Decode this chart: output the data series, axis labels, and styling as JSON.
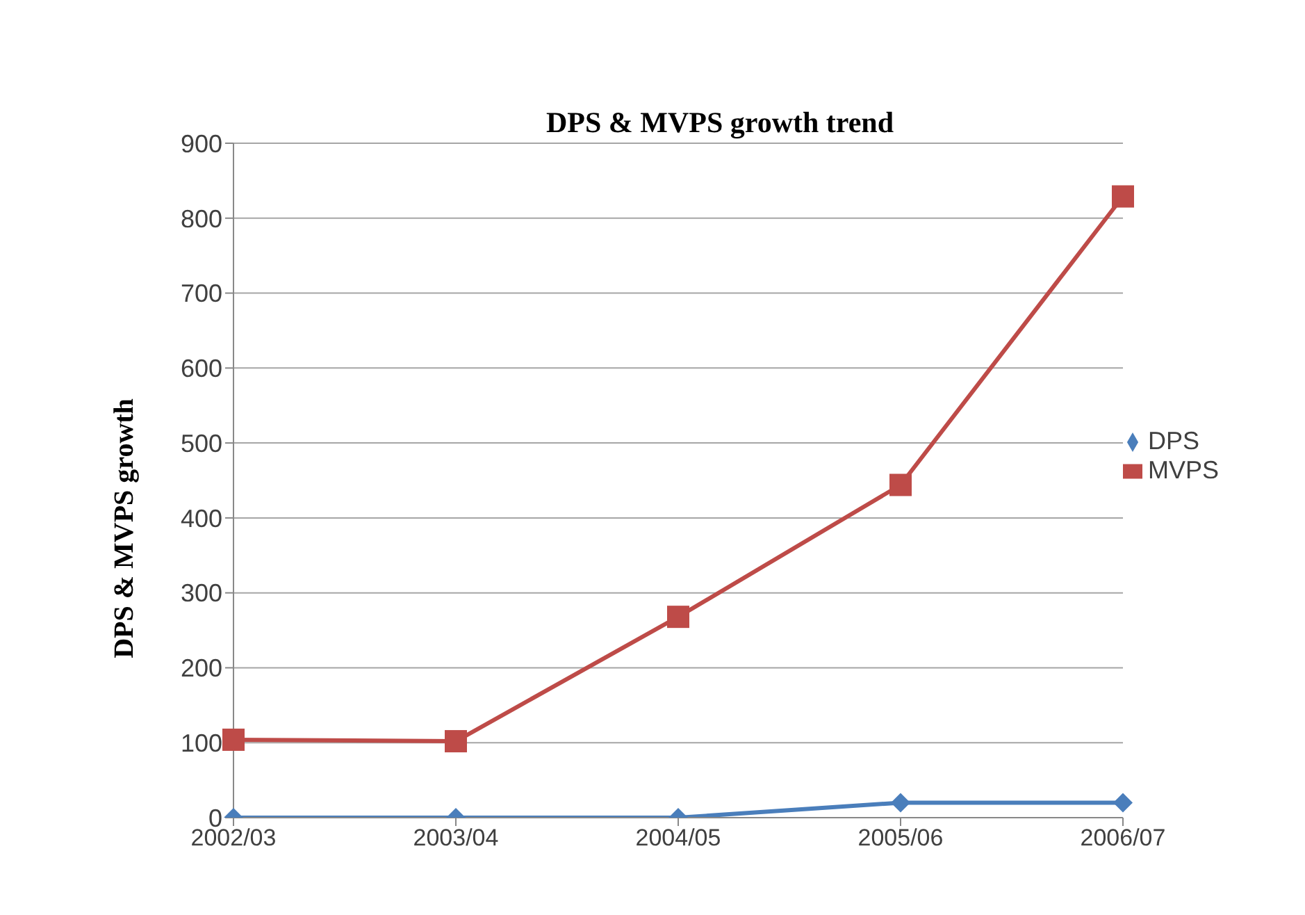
{
  "chart_data": {
    "type": "line",
    "title": "DPS & MVPS growth trend",
    "ylabel": "DPS & MVPS growth",
    "categories": [
      "2002/03",
      "2003/04",
      "2004/05",
      "2005/06",
      "2006/07"
    ],
    "series": [
      {
        "name": "DPS",
        "color": "#4a7ebb",
        "marker": "diamond",
        "values": [
          0,
          0,
          0,
          20,
          20
        ]
      },
      {
        "name": "MVPS",
        "color": "#be4b48",
        "marker": "square",
        "values": [
          104,
          102,
          268,
          444,
          829
        ]
      }
    ],
    "ylim": [
      0,
      900
    ],
    "yticks": [
      0,
      100,
      200,
      300,
      400,
      500,
      600,
      700,
      800,
      900
    ],
    "grid": "y",
    "legend": "right"
  }
}
